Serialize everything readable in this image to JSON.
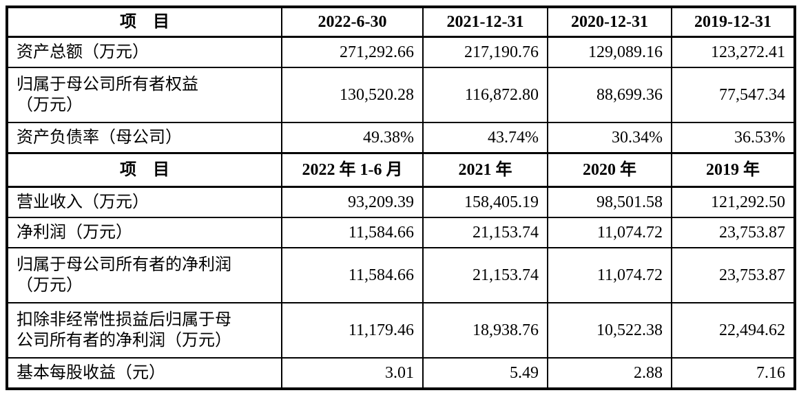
{
  "page": {
    "background_color": "#ffffff",
    "text_color": "#000000",
    "border_color": "#000000"
  },
  "table": {
    "sections": [
      {
        "header": {
          "item_label": "项　目",
          "columns": [
            "2022-6-30",
            "2021-12-31",
            "2020-12-31",
            "2019-12-31"
          ]
        },
        "rows": [
          {
            "label": "资产总额（万元）",
            "values": [
              "271,292.66",
              "217,190.76",
              "129,089.16",
              "123,272.41"
            ]
          },
          {
            "label": "归属于母公司所有者权益\n（万元）",
            "values": [
              "130,520.28",
              "116,872.80",
              "88,699.36",
              "77,547.34"
            ]
          },
          {
            "label": "资产负债率（母公司）",
            "values": [
              "49.38%",
              "43.74%",
              "30.34%",
              "36.53%"
            ]
          }
        ]
      },
      {
        "header": {
          "item_label": "项　目",
          "columns": [
            "2022 年 1-6 月",
            "2021 年",
            "2020 年",
            "2019 年"
          ]
        },
        "rows": [
          {
            "label": "营业收入（万元）",
            "values": [
              "93,209.39",
              "158,405.19",
              "98,501.58",
              "121,292.50"
            ]
          },
          {
            "label": "净利润（万元）",
            "values": [
              "11,584.66",
              "21,153.74",
              "11,074.72",
              "23,753.87"
            ]
          },
          {
            "label": "归属于母公司所有者的净利润\n（万元）",
            "values": [
              "11,584.66",
              "21,153.74",
              "11,074.72",
              "23,753.87"
            ]
          },
          {
            "label": "扣除非经常性损益后归属于母\n公司所有者的净利润（万元）",
            "values": [
              "11,179.46",
              "18,938.76",
              "10,522.38",
              "22,494.62"
            ]
          },
          {
            "label": "基本每股收益（元）",
            "values": [
              "3.01",
              "5.49",
              "2.88",
              "7.16"
            ]
          }
        ]
      }
    ]
  }
}
